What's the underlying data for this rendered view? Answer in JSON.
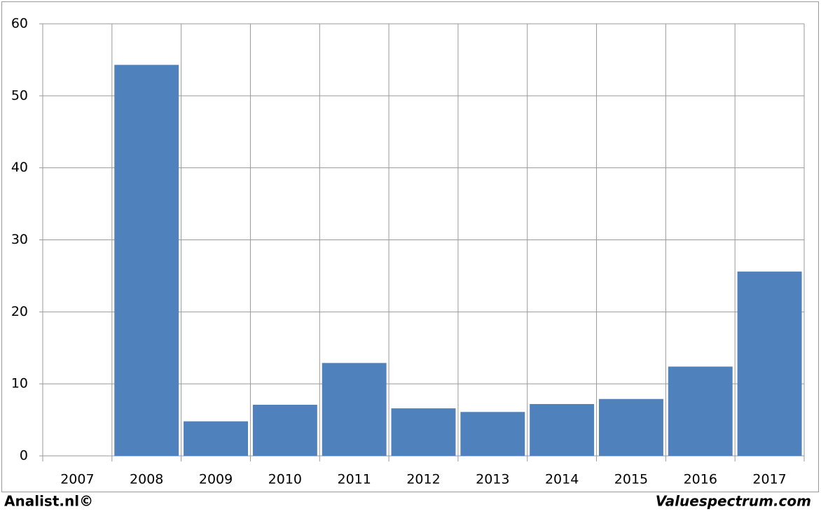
{
  "chart_data": {
    "type": "bar",
    "categories": [
      "2007",
      "2008",
      "2009",
      "2010",
      "2011",
      "2012",
      "2013",
      "2014",
      "2015",
      "2016",
      "2017"
    ],
    "values": [
      null,
      54.3,
      4.8,
      7.1,
      12.9,
      6.6,
      6.1,
      7.2,
      7.9,
      12.4,
      25.6
    ],
    "color": "#4f81bd",
    "ylim": [
      0,
      60
    ],
    "yticks": [
      0,
      10,
      20,
      30,
      40,
      50,
      60
    ],
    "grid": true,
    "footer_left": "Analist.nl©",
    "footer_right": "Valuespectrum.com"
  }
}
